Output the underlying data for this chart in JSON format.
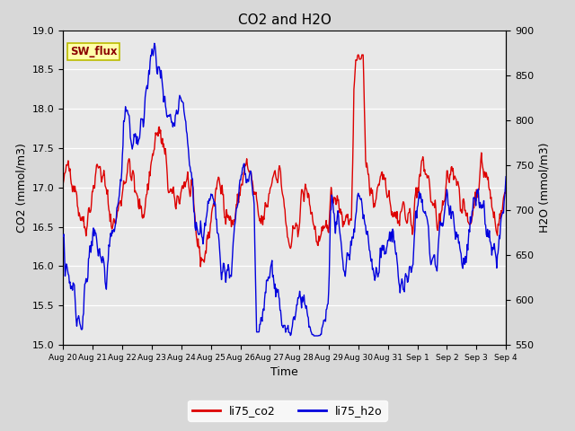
{
  "title": "CO2 and H2O",
  "xlabel": "Time",
  "ylabel_left": "CO2 (mmol/m3)",
  "ylabel_right": "H2O (mmol/m3)",
  "ylim_left": [
    15.0,
    19.0
  ],
  "ylim_right": [
    550,
    900
  ],
  "x_tick_labels": [
    "Aug 20",
    "Aug 21",
    "Aug 22",
    "Aug 23",
    "Aug 24",
    "Aug 25",
    "Aug 26",
    "Aug 27",
    "Aug 28",
    "Aug 29",
    "Aug 30",
    "Aug 31",
    "Sep 1",
    "Sep 2",
    "Sep 3",
    "Sep 4"
  ],
  "co2_color": "#dd0000",
  "h2o_color": "#0000dd",
  "bg_color": "#d8d8d8",
  "plot_bg_color": "#e8e8e8",
  "annotation_text": "SW_flux",
  "annotation_bg": "#ffffaa",
  "annotation_border": "#bbbb00",
  "legend_co2": "li75_co2",
  "legend_h2o": "li75_h2o",
  "linewidth": 1.0,
  "yticks_left": [
    15.0,
    15.5,
    16.0,
    16.5,
    17.0,
    17.5,
    18.0,
    18.5,
    19.0
  ],
  "yticks_right": [
    550,
    600,
    650,
    700,
    750,
    800,
    850,
    900
  ]
}
